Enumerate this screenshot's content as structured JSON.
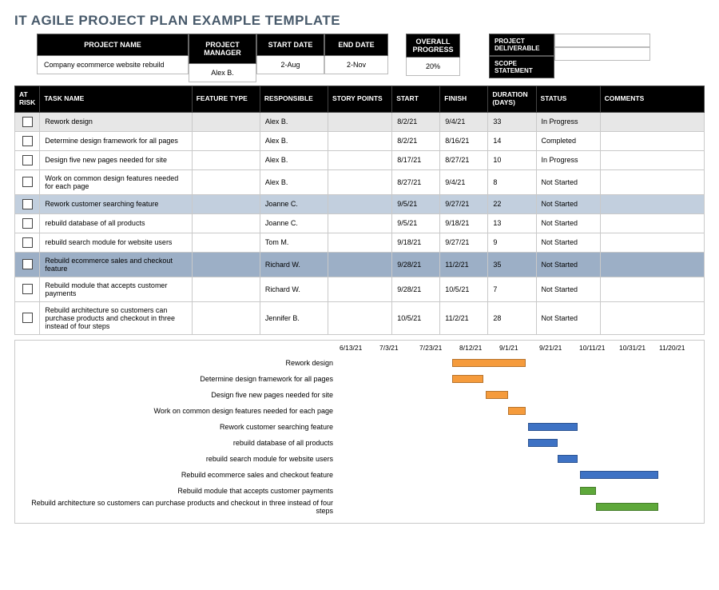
{
  "title": "IT AGILE PROJECT PLAN EXAMPLE TEMPLATE",
  "info": {
    "headers": {
      "project_name": "PROJECT NAME",
      "project_manager": "PROJECT MANAGER",
      "start_date": "START DATE",
      "end_date": "END DATE",
      "overall_progress": "OVERALL PROGRESS",
      "project_deliverable": "PROJECT DELIVERABLE",
      "scope_statement": "SCOPE STATEMENT"
    },
    "values": {
      "project_name": "Company ecommerce website rebuild",
      "project_manager": "Alex B.",
      "start_date": "2-Aug",
      "end_date": "2-Nov",
      "overall_progress": "20%"
    }
  },
  "columns": {
    "at_risk": "AT RISK",
    "task_name": "TASK NAME",
    "feature_type": "FEATURE TYPE",
    "responsible": "RESPONSIBLE",
    "story_points": "STORY POINTS",
    "start": "START",
    "finish": "FINISH",
    "duration": "DURATION (DAYS)",
    "status": "STATUS",
    "comments": "COMMENTS"
  },
  "col_widths": {
    "at_risk": 28,
    "task_name": 190,
    "feature_type": 85,
    "responsible": 85,
    "story_points": 80,
    "start": 60,
    "finish": 60,
    "duration": 60,
    "status": 80,
    "comments": 130
  },
  "row_colors": {
    "shade_light": "#e7e7e7",
    "shade_blue": "#c2cfde",
    "shade_dblue": "#9cafc6"
  },
  "tasks": [
    {
      "shade": "shade-light",
      "name": "Rework design",
      "responsible": "Alex B.",
      "start": "8/2/21",
      "finish": "9/4/21",
      "duration": "33",
      "status": "In Progress"
    },
    {
      "shade": "",
      "name": "Determine design framework for all pages",
      "responsible": "Alex B.",
      "start": "8/2/21",
      "finish": "8/16/21",
      "duration": "14",
      "status": "Completed"
    },
    {
      "shade": "",
      "name": "Design five new pages needed for site",
      "responsible": "Alex B.",
      "start": "8/17/21",
      "finish": "8/27/21",
      "duration": "10",
      "status": "In Progress"
    },
    {
      "shade": "",
      "name": "Work on common design features needed for each page",
      "responsible": "Alex B.",
      "start": "8/27/21",
      "finish": "9/4/21",
      "duration": "8",
      "status": "Not Started"
    },
    {
      "shade": "shade-blue",
      "name": "Rework customer searching feature",
      "responsible": "Joanne C.",
      "start": "9/5/21",
      "finish": "9/27/21",
      "duration": "22",
      "status": "Not Started"
    },
    {
      "shade": "",
      "name": "rebuild database of all products",
      "responsible": "Joanne C.",
      "start": "9/5/21",
      "finish": "9/18/21",
      "duration": "13",
      "status": "Not Started"
    },
    {
      "shade": "",
      "name": "rebuild search module for website users",
      "responsible": "Tom M.",
      "start": "9/18/21",
      "finish": "9/27/21",
      "duration": "9",
      "status": "Not Started"
    },
    {
      "shade": "shade-dblue",
      "name": "Rebuild ecommerce sales and checkout feature",
      "responsible": "Richard W.",
      "start": "9/28/21",
      "finish": "11/2/21",
      "duration": "35",
      "status": "Not Started"
    },
    {
      "shade": "",
      "name": "Rebuild module that accepts customer payments",
      "responsible": "Richard W.",
      "start": "9/28/21",
      "finish": "10/5/21",
      "duration": "7",
      "status": "Not Started"
    },
    {
      "shade": "",
      "name": "Rebuild architecture so customers can purchase products and checkout in three instead of four steps",
      "responsible": "Jennifer B.",
      "start": "10/5/21",
      "finish": "11/2/21",
      "duration": "28",
      "status": "Not Started"
    }
  ],
  "gantt": {
    "axis_labels": [
      "6/13/21",
      "7/3/21",
      "7/23/21",
      "8/12/21",
      "9/1/21",
      "9/21/21",
      "10/11/21",
      "10/31/21",
      "11/20/21"
    ],
    "axis_start_day": 0,
    "axis_end_day": 160,
    "colors": {
      "orange": "#f59b3c",
      "blue": "#3e72c4",
      "green": "#5ea83a"
    },
    "rows": [
      {
        "label": "Rework design",
        "color": "orange",
        "start": 50,
        "dur": 33
      },
      {
        "label": "Determine design framework for all pages",
        "color": "orange",
        "start": 50,
        "dur": 14
      },
      {
        "label": "Design five new pages needed for site",
        "color": "orange",
        "start": 65,
        "dur": 10
      },
      {
        "label": "Work on common design features needed for each page",
        "color": "orange",
        "start": 75,
        "dur": 8
      },
      {
        "label": "Rework customer searching feature",
        "color": "blue",
        "start": 84,
        "dur": 22
      },
      {
        "label": "rebuild database of all products",
        "color": "blue",
        "start": 84,
        "dur": 13
      },
      {
        "label": "rebuild search module for website users",
        "color": "blue",
        "start": 97,
        "dur": 9
      },
      {
        "label": "Rebuild ecommerce sales and checkout feature",
        "color": "blue",
        "start": 107,
        "dur": 35
      },
      {
        "label": "Rebuild module that accepts customer payments",
        "color": "green",
        "start": 107,
        "dur": 7
      },
      {
        "label": "Rebuild architecture so customers can purchase products and checkout in three instead of four steps",
        "color": "green",
        "start": 114,
        "dur": 28
      }
    ]
  }
}
